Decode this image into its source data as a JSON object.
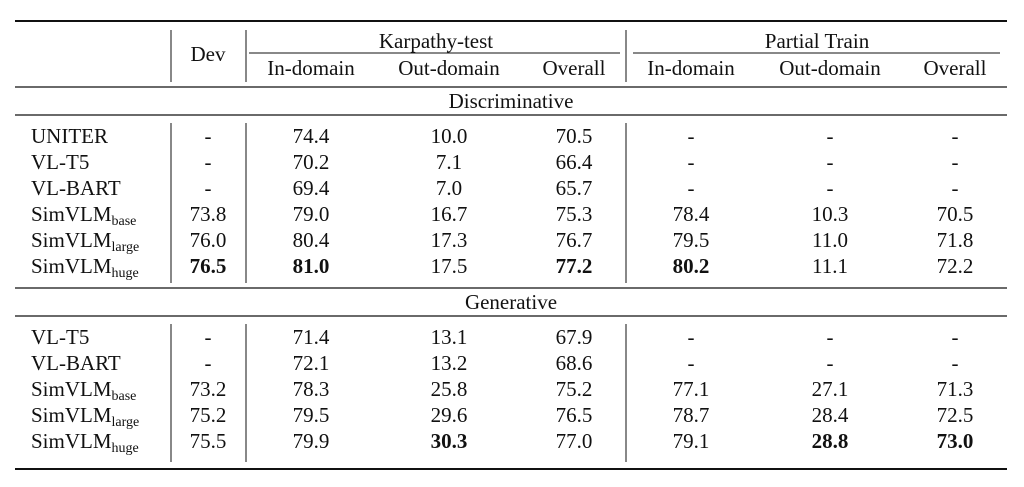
{
  "header": {
    "dev": "Dev",
    "group1": "Karpathy-test",
    "group2": "Partial Train",
    "sub_columns": [
      "In-domain",
      "Out-domain",
      "Overall",
      "In-domain",
      "Out-domain",
      "Overall"
    ]
  },
  "sections": [
    {
      "title": "Discriminative",
      "rows": [
        {
          "model": "UNITER",
          "suffix": "",
          "values": [
            "-",
            "74.4",
            "10.0",
            "70.5",
            "-",
            "-",
            "-"
          ],
          "bold": []
        },
        {
          "model": "VL-T5",
          "suffix": "",
          "values": [
            "-",
            "70.2",
            "7.1",
            "66.4",
            "-",
            "-",
            "-"
          ],
          "bold": []
        },
        {
          "model": "VL-BART",
          "suffix": "",
          "values": [
            "-",
            "69.4",
            "7.0",
            "65.7",
            "-",
            "-",
            "-"
          ],
          "bold": []
        },
        {
          "model": "SimVLM",
          "suffix": "base",
          "values": [
            "73.8",
            "79.0",
            "16.7",
            "75.3",
            "78.4",
            "10.3",
            "70.5"
          ],
          "bold": []
        },
        {
          "model": "SimVLM",
          "suffix": "large",
          "values": [
            "76.0",
            "80.4",
            "17.3",
            "76.7",
            "79.5",
            "11.0",
            "71.8"
          ],
          "bold": []
        },
        {
          "model": "SimVLM",
          "suffix": "huge",
          "values": [
            "76.5",
            "81.0",
            "17.5",
            "77.2",
            "80.2",
            "11.1",
            "72.2"
          ],
          "bold": [
            0,
            1,
            3,
            4
          ]
        }
      ]
    },
    {
      "title": "Generative",
      "rows": [
        {
          "model": "VL-T5",
          "suffix": "",
          "values": [
            "-",
            "71.4",
            "13.1",
            "67.9",
            "-",
            "-",
            "-"
          ],
          "bold": []
        },
        {
          "model": "VL-BART",
          "suffix": "",
          "values": [
            "-",
            "72.1",
            "13.2",
            "68.6",
            "-",
            "-",
            "-"
          ],
          "bold": []
        },
        {
          "model": "SimVLM",
          "suffix": "base",
          "values": [
            "73.2",
            "78.3",
            "25.8",
            "75.2",
            "77.1",
            "27.1",
            "71.3"
          ],
          "bold": []
        },
        {
          "model": "SimVLM",
          "suffix": "large",
          "values": [
            "75.2",
            "79.5",
            "29.6",
            "76.5",
            "78.7",
            "28.4",
            "72.5"
          ],
          "bold": []
        },
        {
          "model": "SimVLM",
          "suffix": "huge",
          "values": [
            "75.5",
            "79.9",
            "30.3",
            "77.0",
            "79.1",
            "28.8",
            "73.0"
          ],
          "bold": [
            2,
            5,
            6
          ]
        }
      ]
    }
  ]
}
